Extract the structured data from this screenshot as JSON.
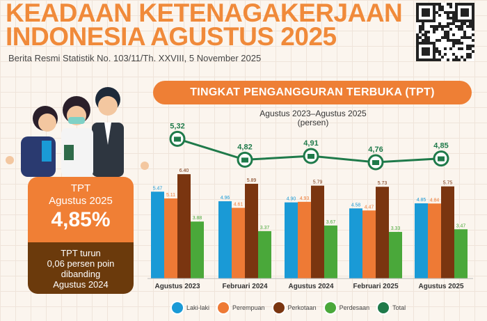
{
  "header": {
    "title_line1": "KEADAAN KETENAGAKERJAAN",
    "title_line2": "INDONESIA AGUSTUS 2025",
    "subtitle": "Berita Resmi Statistik No. 103/11/Th. XXVIII, 5 November 2025"
  },
  "summary": {
    "label1": "TPT",
    "label2": "Agustus 2025",
    "value": "4,85%",
    "note_line1": "TPT turun",
    "note_line2": "0,06 persen poin",
    "note_line3": "dibanding",
    "note_line4": "Agustus 2024"
  },
  "chart_data": {
    "type": "bar",
    "title": "TINGKAT PENGANGGURAN TERBUKA (TPT)",
    "subtitle": "Agustus 2023–Agustus 2025",
    "unit": "(persen)",
    "categories": [
      "Agustus 2023",
      "Februari 2024",
      "Agustus 2024",
      "Februari 2025",
      "Agustus 2025"
    ],
    "series": [
      {
        "name": "Laki-laki",
        "color": "#1a9ad6",
        "values": [
          5.47,
          4.96,
          4.9,
          4.58,
          4.85
        ]
      },
      {
        "name": "Perempuan",
        "color": "#ee7a35",
        "values": [
          5.11,
          4.61,
          4.93,
          4.47,
          4.84
        ]
      },
      {
        "name": "Perkotaan",
        "color": "#7a3510",
        "values": [
          6.4,
          5.89,
          5.79,
          5.73,
          5.75
        ]
      },
      {
        "name": "Perdesaan",
        "color": "#4aa83a",
        "values": [
          3.88,
          3.37,
          3.67,
          3.33,
          3.47
        ]
      }
    ],
    "line": {
      "name": "Total",
      "color": "#1f7a4a",
      "values": [
        5.32,
        4.82,
        4.91,
        4.76,
        4.85
      ],
      "labels": [
        "5,32",
        "4,82",
        "4,91",
        "4,76",
        "4,85"
      ]
    },
    "grid": true,
    "legend": "bottom"
  }
}
